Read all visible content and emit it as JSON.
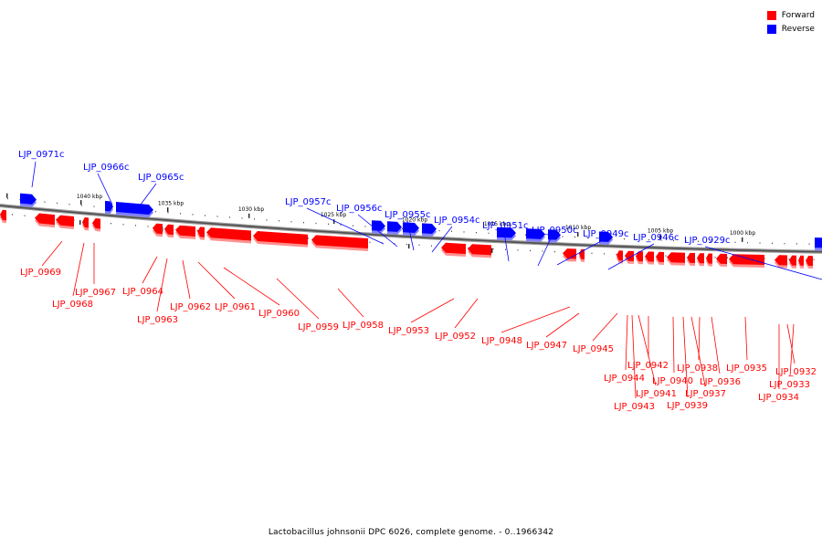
{
  "legend": {
    "forward_label": "Forward",
    "reverse_label": "Reverse",
    "forward_color": "#ff0000",
    "reverse_color": "#0000ff"
  },
  "caption": "Lactobacillus johnsonii DPC 6026, complete genome. - 0..1966342",
  "kbp_ticks": [
    "1040 kbp",
    "1035 kbp",
    "1030 kbp",
    "1025 kbp",
    "1020 kbp",
    "1015 kbp",
    "1010 kbp",
    "1005 kbp",
    "1000 kbp"
  ],
  "reverse_genes": [
    "LJP_0971c",
    "LJP_0966c",
    "LJP_0965c",
    "LJP_0957c",
    "LJP_0956c",
    "LJP_0955c",
    "LJP_0954c",
    "LJP_0951c",
    "LJP_0950c",
    "LJP_0949c",
    "LJP_0946c",
    "LJP_0929c"
  ],
  "forward_genes": [
    "LJP_0969",
    "LJP_0968",
    "LJP_0967",
    "LJP_0964",
    "LJP_0963",
    "LJP_0962",
    "LJP_0961",
    "LJP_0960",
    "LJP_0959",
    "LJP_0958",
    "LJP_0953",
    "LJP_0952",
    "LJP_0948",
    "LJP_0947",
    "LJP_0945",
    "LJP_0944",
    "LJP_0943",
    "LJP_0942",
    "LJP_0941",
    "LJP_0940",
    "LJP_0939",
    "LJP_0938",
    "LJP_0937",
    "LJP_0936",
    "LJP_0935",
    "LJP_0934",
    "LJP_0933",
    "LJP_0932"
  ]
}
